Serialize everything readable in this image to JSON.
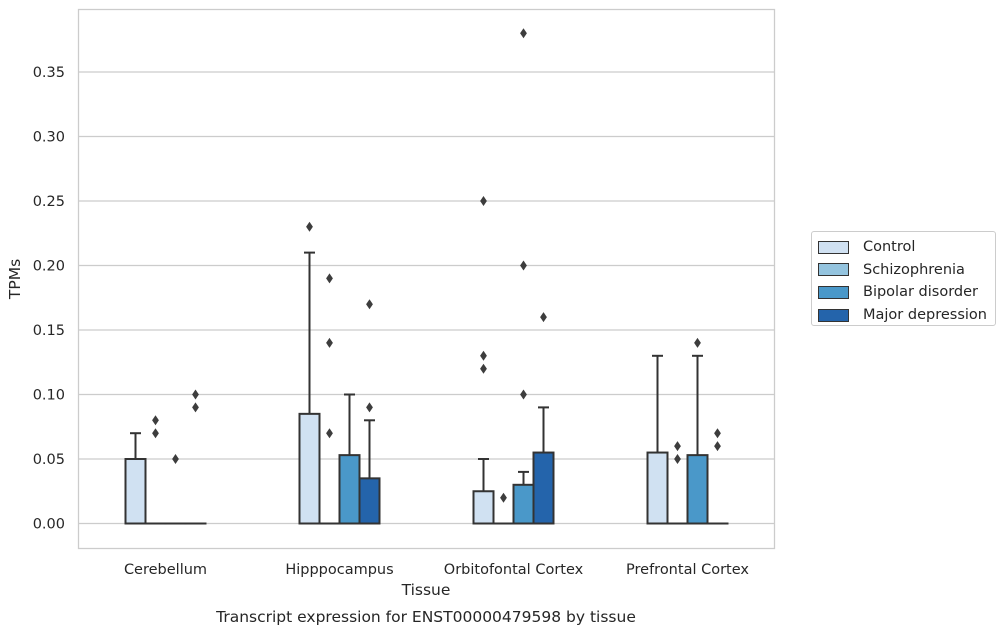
{
  "chart_data": {
    "type": "box",
    "title": "Transcript expression for ENST00000479598 by tissue",
    "xlabel": "Tissue",
    "ylabel": "TPMs",
    "ylim": [
      -0.018,
      0.398
    ],
    "yticks": [
      "0.00",
      "0.05",
      "0.10",
      "0.15",
      "0.20",
      "0.25",
      "0.30",
      "0.35"
    ],
    "grid": "horizontal",
    "legend_position": "right",
    "categories": [
      "Cerebellum",
      "Hipppocampus",
      "Orbitofontal Cortex",
      "Prefrontal Cortex"
    ],
    "series": [
      {
        "name": "Control",
        "color": "#d0e1f2",
        "boxes": [
          {
            "q1": 0,
            "median": 0,
            "q3": 0.05,
            "whisker_low": 0,
            "whisker_high": 0.07,
            "outliers": []
          },
          {
            "q1": 0,
            "median": 0,
            "q3": 0.085,
            "whisker_low": 0,
            "whisker_high": 0.21,
            "outliers": [
              0.23
            ]
          },
          {
            "q1": 0,
            "median": 0,
            "q3": 0.025,
            "whisker_low": 0,
            "whisker_high": 0.05,
            "outliers": [
              0.12,
              0.13,
              0.25
            ]
          },
          {
            "q1": 0,
            "median": 0,
            "q3": 0.055,
            "whisker_low": 0,
            "whisker_high": 0.13,
            "outliers": []
          }
        ]
      },
      {
        "name": "Schizophrenia",
        "color": "#94c4df",
        "boxes": [
          {
            "q1": 0,
            "median": 0,
            "q3": 0,
            "whisker_low": 0,
            "whisker_high": 0,
            "outliers": [
              0.07,
              0.08
            ]
          },
          {
            "q1": 0,
            "median": 0,
            "q3": 0,
            "whisker_low": 0,
            "whisker_high": 0,
            "outliers": [
              0.07,
              0.14,
              0.19
            ]
          },
          {
            "q1": 0,
            "median": 0,
            "q3": 0,
            "whisker_low": 0,
            "whisker_high": 0,
            "outliers": [
              0.02
            ]
          },
          {
            "q1": 0,
            "median": 0,
            "q3": 0,
            "whisker_low": 0,
            "whisker_high": 0,
            "outliers": [
              0.05,
              0.06
            ]
          }
        ]
      },
      {
        "name": "Bipolar disorder",
        "color": "#4a98c9",
        "boxes": [
          {
            "q1": 0,
            "median": 0,
            "q3": 0,
            "whisker_low": 0,
            "whisker_high": 0,
            "outliers": [
              0.05
            ]
          },
          {
            "q1": 0,
            "median": 0,
            "q3": 0.053,
            "whisker_low": 0,
            "whisker_high": 0.1,
            "outliers": []
          },
          {
            "q1": 0,
            "median": 0,
            "q3": 0.03,
            "whisker_low": 0,
            "whisker_high": 0.04,
            "outliers": [
              0.1,
              0.2,
              0.38
            ]
          },
          {
            "q1": 0,
            "median": 0,
            "q3": 0.053,
            "whisker_low": 0,
            "whisker_high": 0.13,
            "outliers": [
              0.14
            ]
          }
        ]
      },
      {
        "name": "Major depression",
        "color": "#2464ab",
        "boxes": [
          {
            "q1": 0,
            "median": 0,
            "q3": 0,
            "whisker_low": 0,
            "whisker_high": 0,
            "outliers": [
              0.09,
              0.1
            ]
          },
          {
            "q1": 0,
            "median": 0,
            "q3": 0.035,
            "whisker_low": 0,
            "whisker_high": 0.08,
            "outliers": [
              0.09,
              0.17
            ]
          },
          {
            "q1": 0,
            "median": 0,
            "q3": 0.055,
            "whisker_low": 0,
            "whisker_high": 0.09,
            "outliers": [
              0.16
            ]
          },
          {
            "q1": 0,
            "median": 0,
            "q3": 0,
            "whisker_low": 0,
            "whisker_high": 0,
            "outliers": [
              0.06,
              0.07
            ]
          }
        ]
      }
    ]
  }
}
